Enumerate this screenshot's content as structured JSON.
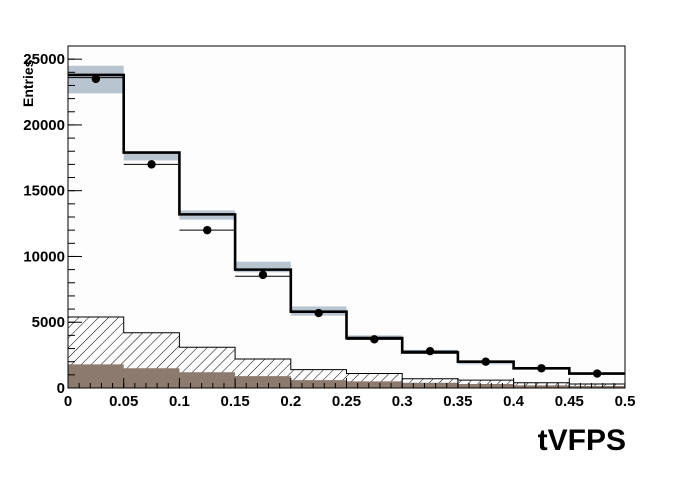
{
  "chart_data": {
    "type": "bar",
    "xlabel": "tVFPS",
    "ylabel": "Entries",
    "xlim": [
      0,
      0.5
    ],
    "ylim": [
      0,
      26000
    ],
    "grid": false,
    "bin_edges": [
      0,
      0.05,
      0.1,
      0.15,
      0.2,
      0.25,
      0.3,
      0.35,
      0.4,
      0.45,
      0.5
    ],
    "x_tick_labels": [
      "0",
      "0.05",
      "0.1",
      "0.15",
      "0.2",
      "0.25",
      "0.3",
      "0.35",
      "0.4",
      "0.45",
      "0.5"
    ],
    "y_tick_labels": [
      "0",
      "5000",
      "10000",
      "15000",
      "20000",
      "25000"
    ],
    "series": [
      {
        "style": "thick-line-histogram",
        "values": [
          23800,
          17900,
          13200,
          9000,
          5800,
          3800,
          2700,
          2000,
          1500,
          1100
        ]
      },
      {
        "style": "grey-uncertainty-band",
        "low": [
          22400,
          17300,
          12800,
          8800,
          5500,
          3700,
          2600,
          1800,
          1400,
          1000
        ],
        "high": [
          24500,
          18000,
          13500,
          9600,
          6200,
          4000,
          2900,
          2100,
          1600,
          1200
        ]
      },
      {
        "style": "thin-line-histogram",
        "values": [
          23600,
          17000,
          12000,
          8500,
          5800,
          3700,
          2800,
          2000,
          1500,
          1100
        ]
      },
      {
        "style": "hatched-histogram",
        "values": [
          5400,
          4200,
          3100,
          2200,
          1400,
          1100,
          700,
          600,
          400,
          300
        ]
      },
      {
        "style": "filled-brown-histogram",
        "values": [
          1800,
          1500,
          1200,
          900,
          600,
          500,
          400,
          300,
          200,
          150
        ]
      },
      {
        "style": "data-points",
        "x": [
          0.025,
          0.075,
          0.125,
          0.175,
          0.225,
          0.275,
          0.325,
          0.375,
          0.425,
          0.475
        ],
        "y": [
          23500,
          17000,
          12000,
          8600,
          5700,
          3700,
          2800,
          2000,
          1500,
          1100
        ],
        "y_err": [
          150,
          130,
          110,
          90,
          75,
          60,
          53,
          45,
          39,
          33
        ]
      }
    ],
    "colors": {
      "band": "#b8c4d0",
      "band_edge": "#8f9fb0",
      "filled": "#8c7a6e",
      "hatch": "#000000",
      "frame": "#000000"
    }
  }
}
